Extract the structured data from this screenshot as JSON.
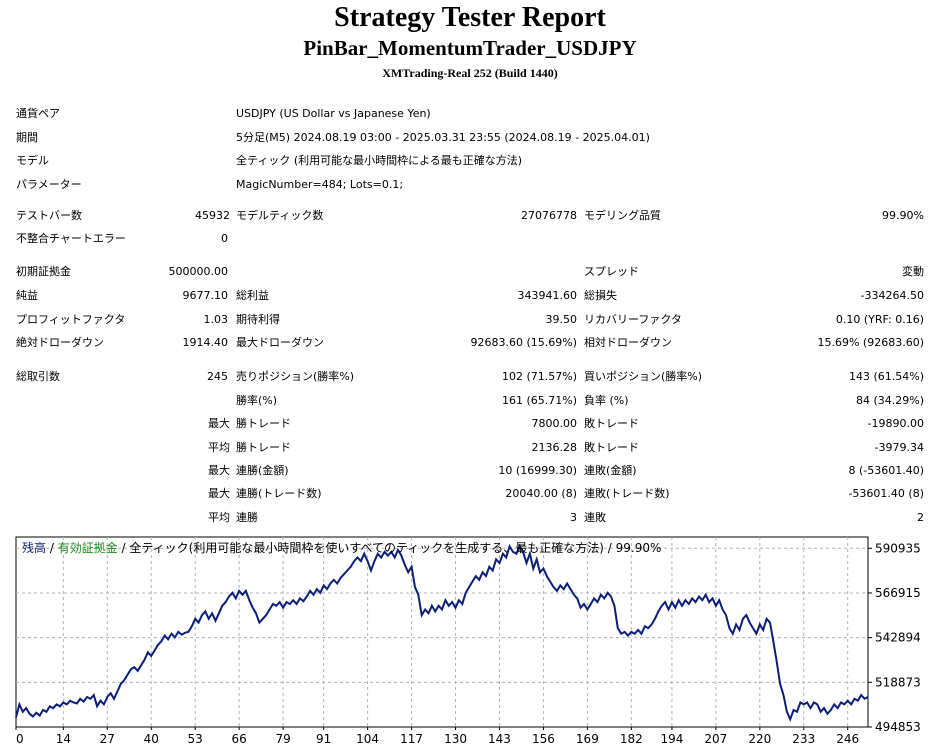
{
  "header": {
    "title": "Strategy Tester Report",
    "ea_name": "PinBar_MomentumTrader_USDJPY",
    "server": "XMTrading-Real 252 (Build 1440)"
  },
  "settings": [
    {
      "label": "通貨ペア",
      "value": "USDJPY (US Dollar vs Japanese Yen)"
    },
    {
      "label": "期間",
      "value": "5分足(M5) 2024.08.19 03:00 - 2025.03.31 23:55 (2024.08.19 - 2025.04.01)"
    },
    {
      "label": "モデル",
      "value": "全ティック (利用可能な最小時間枠による最も正確な方法)"
    },
    {
      "label": "パラメーター",
      "value": "MagicNumber=484; Lots=0.1;"
    }
  ],
  "stats": {
    "bars_label": "テストバー数",
    "bars": "45932",
    "ticks_label": "モデルティック数",
    "ticks": "27076778",
    "quality_label": "モデリング品質",
    "quality": "99.90%",
    "errors_label": "不整合チャートエラー",
    "errors": "0",
    "deposit_label": "初期証拠金",
    "deposit": "500000.00",
    "spread_label": "スプレッド",
    "spread": "変動",
    "net_label": "純益",
    "net": "9677.10",
    "gross_profit_label": "総利益",
    "gross_profit": "343941.60",
    "gross_loss_label": "総損失",
    "gross_loss": "-334264.50",
    "pf_label": "プロフィットファクタ",
    "pf": "1.03",
    "expected_label": "期待利得",
    "expected": "39.50",
    "recovery_label": "リカバリーファクタ",
    "recovery": "0.10 (YRF: 0.16)",
    "abs_dd_label": "絶対ドローダウン",
    "abs_dd": "1914.40",
    "max_dd_label": "最大ドローダウン",
    "max_dd": "92683.60 (15.69%)",
    "rel_dd_label": "相対ドローダウン",
    "rel_dd": "15.69% (92683.60)",
    "trades_label": "総取引数",
    "trades": "245",
    "short_label": "売りポジション(勝率%)",
    "short": "102 (71.57%)",
    "long_label": "買いポジション(勝率%)",
    "long": "143 (61.54%)",
    "win_rate_label": "勝率(%)",
    "win_rate": "161 (65.71%)",
    "loss_rate_label": "負率 (%)",
    "loss_rate": "84 (34.29%)",
    "largest_label": "最大",
    "largest_win_label": "勝トレード",
    "largest_win": "7800.00",
    "largest_loss_label": "敗トレード",
    "largest_loss": "-19890.00",
    "average_label": "平均",
    "avg_win_label": "勝トレード",
    "avg_win": "2136.28",
    "avg_loss_label": "敗トレード",
    "avg_loss": "-3979.34",
    "max1_label": "最大",
    "consec_win_amt_label": "連勝(金額)",
    "consec_win_amt": "10 (16999.30)",
    "consec_loss_amt_label": "連敗(金額)",
    "consec_loss_amt": "8 (-53601.40)",
    "max2_label": "最大",
    "consec_win_cnt_label": "連勝(トレード数)",
    "consec_win_cnt": "20040.00 (8)",
    "consec_loss_cnt_label": "連敗(トレード数)",
    "consec_loss_cnt": "-53601.40 (8)",
    "avg2_label": "平均",
    "avg_consec_win_label": "連勝",
    "avg_consec_win": "3",
    "avg_consec_loss_label": "連敗",
    "avg_consec_loss": "2"
  },
  "colors": {
    "balance": "#0b1e7a",
    "equity": "#1e8c1e",
    "grid": "#b4b4b4"
  },
  "chart_data": {
    "type": "line",
    "legend": {
      "balance": "残高",
      "sep1": " / ",
      "equity": "有効証拠金",
      "sep2": " / ",
      "rest": "全ティック(利用可能な最小時間枠を使いすべてのティックを生成する、最も正確な方法) / 99.90%"
    },
    "y_ticks": [
      590935,
      566915,
      542894,
      518873,
      494853
    ],
    "x_ticks": [
      0,
      14,
      27,
      40,
      53,
      66,
      79,
      91,
      104,
      117,
      130,
      143,
      156,
      169,
      182,
      194,
      207,
      220,
      233,
      246
    ],
    "ylim": [
      494853,
      597000
    ],
    "xlim": [
      0,
      252
    ],
    "series": [
      {
        "values": [
          [
            0,
            500000
          ],
          [
            1,
            507000
          ],
          [
            2,
            503000
          ],
          [
            3,
            505000
          ],
          [
            4,
            502000
          ],
          [
            5,
            500500
          ],
          [
            6,
            502500
          ],
          [
            7,
            501000
          ],
          [
            8,
            504000
          ],
          [
            9,
            503000
          ],
          [
            10,
            506000
          ],
          [
            11,
            505000
          ],
          [
            12,
            507000
          ],
          [
            13,
            506000
          ],
          [
            14,
            508000
          ],
          [
            15,
            507000
          ],
          [
            16,
            509000
          ],
          [
            17,
            508000
          ],
          [
            18,
            507500
          ],
          [
            19,
            510000
          ],
          [
            20,
            508500
          ],
          [
            21,
            511000
          ],
          [
            22,
            510000
          ],
          [
            23,
            512000
          ],
          [
            24,
            506000
          ],
          [
            25,
            509000
          ],
          [
            26,
            507000
          ],
          [
            27,
            511000
          ],
          [
            28,
            513000
          ],
          [
            29,
            510000
          ],
          [
            30,
            514000
          ],
          [
            31,
            518000
          ],
          [
            32,
            520000
          ],
          [
            33,
            523000
          ],
          [
            34,
            526000
          ],
          [
            35,
            527000
          ],
          [
            36,
            525000
          ],
          [
            37,
            528000
          ],
          [
            38,
            531000
          ],
          [
            39,
            535000
          ],
          [
            40,
            533000
          ],
          [
            41,
            536000
          ],
          [
            42,
            539000
          ],
          [
            43,
            541000
          ],
          [
            44,
            544000
          ],
          [
            45,
            542000
          ],
          [
            46,
            545000
          ],
          [
            47,
            543000
          ],
          [
            48,
            546000
          ],
          [
            49,
            544500
          ],
          [
            50,
            545500
          ],
          [
            51,
            546000
          ],
          [
            52,
            549000
          ],
          [
            53,
            553000
          ],
          [
            54,
            551000
          ],
          [
            55,
            555000
          ],
          [
            56,
            557000
          ],
          [
            57,
            553000
          ],
          [
            58,
            556000
          ],
          [
            59,
            552000
          ],
          [
            60,
            556000
          ],
          [
            61,
            560000
          ],
          [
            62,
            562000
          ],
          [
            63,
            565000
          ],
          [
            64,
            567000
          ],
          [
            65,
            564000
          ],
          [
            66,
            568000
          ],
          [
            67,
            566000
          ],
          [
            68,
            568000
          ],
          [
            69,
            563000
          ],
          [
            70,
            559000
          ],
          [
            71,
            556000
          ],
          [
            72,
            551000
          ],
          [
            73,
            553000
          ],
          [
            74,
            555000
          ],
          [
            75,
            558000
          ],
          [
            76,
            561000
          ],
          [
            77,
            560000
          ],
          [
            78,
            562000
          ],
          [
            79,
            559000
          ],
          [
            80,
            562000
          ],
          [
            81,
            561000
          ],
          [
            82,
            563000
          ],
          [
            83,
            561000
          ],
          [
            84,
            564000
          ],
          [
            85,
            562500
          ],
          [
            86,
            565000
          ],
          [
            87,
            568000
          ],
          [
            88,
            566000
          ],
          [
            89,
            569000
          ],
          [
            90,
            567000
          ],
          [
            91,
            571000
          ],
          [
            92,
            569000
          ],
          [
            93,
            572000
          ],
          [
            94,
            574000
          ],
          [
            95,
            572000
          ],
          [
            96,
            575000
          ],
          [
            97,
            577000
          ],
          [
            98,
            579000
          ],
          [
            99,
            581000
          ],
          [
            100,
            584000
          ],
          [
            101,
            586000
          ],
          [
            102,
            584000
          ],
          [
            103,
            588000
          ],
          [
            104,
            584000
          ],
          [
            105,
            579000
          ],
          [
            106,
            584000
          ],
          [
            107,
            588000
          ],
          [
            108,
            586000
          ],
          [
            109,
            589000
          ],
          [
            110,
            587000
          ],
          [
            111,
            589000
          ],
          [
            112,
            586000
          ],
          [
            113,
            590000
          ],
          [
            114,
            587000
          ],
          [
            115,
            582000
          ],
          [
            116,
            578000
          ],
          [
            117,
            581000
          ],
          [
            118,
            570000
          ],
          [
            119,
            566000
          ],
          [
            120,
            555000
          ],
          [
            121,
            558000
          ],
          [
            122,
            556000
          ],
          [
            123,
            560000
          ],
          [
            124,
            557000
          ],
          [
            125,
            560000
          ],
          [
            126,
            558000
          ],
          [
            127,
            563000
          ],
          [
            128,
            560000
          ],
          [
            129,
            562000
          ],
          [
            130,
            559000
          ],
          [
            131,
            563000
          ],
          [
            132,
            561000
          ],
          [
            133,
            567000
          ],
          [
            134,
            570000
          ],
          [
            135,
            573000
          ],
          [
            136,
            576000
          ],
          [
            137,
            574000
          ],
          [
            138,
            578000
          ],
          [
            139,
            576000
          ],
          [
            140,
            581000
          ],
          [
            141,
            579000
          ],
          [
            142,
            585000
          ],
          [
            143,
            583000
          ],
          [
            144,
            588000
          ],
          [
            145,
            586000
          ],
          [
            146,
            592000
          ],
          [
            147,
            589000
          ],
          [
            148,
            588000
          ],
          [
            149,
            592000
          ],
          [
            150,
            589000
          ],
          [
            151,
            583000
          ],
          [
            152,
            588000
          ],
          [
            153,
            580000
          ],
          [
            154,
            585000
          ],
          [
            155,
            578000
          ],
          [
            156,
            580000
          ],
          [
            157,
            576000
          ],
          [
            158,
            573000
          ],
          [
            159,
            570000
          ],
          [
            160,
            568000
          ],
          [
            161,
            571000
          ],
          [
            162,
            569000
          ],
          [
            163,
            572000
          ],
          [
            164,
            569000
          ],
          [
            165,
            566000
          ],
          [
            166,
            564000
          ],
          [
            167,
            559000
          ],
          [
            168,
            561000
          ],
          [
            169,
            558000
          ],
          [
            170,
            561000
          ],
          [
            171,
            564000
          ],
          [
            172,
            562000
          ],
          [
            173,
            566000
          ],
          [
            174,
            564000
          ],
          [
            175,
            567000
          ],
          [
            176,
            565000
          ],
          [
            177,
            560000
          ],
          [
            178,
            548000
          ],
          [
            179,
            545000
          ],
          [
            180,
            546000
          ],
          [
            181,
            544000
          ],
          [
            182,
            546000
          ],
          [
            183,
            545000
          ],
          [
            184,
            547000
          ],
          [
            185,
            545000
          ],
          [
            186,
            549000
          ],
          [
            187,
            548000
          ],
          [
            188,
            550000
          ],
          [
            189,
            553000
          ],
          [
            190,
            557000
          ],
          [
            191,
            560000
          ],
          [
            192,
            562000
          ],
          [
            193,
            558000
          ],
          [
            194,
            562000
          ],
          [
            195,
            559000
          ],
          [
            196,
            563000
          ],
          [
            197,
            560000
          ],
          [
            198,
            563000
          ],
          [
            199,
            561000
          ],
          [
            200,
            564000
          ],
          [
            201,
            562000
          ],
          [
            202,
            565000
          ],
          [
            203,
            563000
          ],
          [
            204,
            566000
          ],
          [
            205,
            562000
          ],
          [
            206,
            564000
          ],
          [
            207,
            560000
          ],
          [
            208,
            563000
          ],
          [
            209,
            558000
          ],
          [
            210,
            555000
          ],
          [
            211,
            548000
          ],
          [
            212,
            545000
          ],
          [
            213,
            550000
          ],
          [
            214,
            547000
          ],
          [
            215,
            553000
          ],
          [
            216,
            555000
          ],
          [
            217,
            551000
          ],
          [
            218,
            548000
          ],
          [
            219,
            545000
          ],
          [
            220,
            550000
          ],
          [
            221,
            547000
          ],
          [
            222,
            553000
          ],
          [
            223,
            551000
          ],
          [
            224,
            541000
          ],
          [
            225,
            530000
          ],
          [
            226,
            518000
          ],
          [
            227,
            512000
          ],
          [
            228,
            503000
          ],
          [
            229,
            499000
          ],
          [
            230,
            504000
          ],
          [
            231,
            503000
          ],
          [
            232,
            508000
          ],
          [
            233,
            507000
          ],
          [
            234,
            508000
          ],
          [
            235,
            505000
          ],
          [
            236,
            508000
          ],
          [
            237,
            507000
          ],
          [
            238,
            503000
          ],
          [
            239,
            505000
          ],
          [
            240,
            502000
          ],
          [
            241,
            504000
          ],
          [
            242,
            507000
          ],
          [
            243,
            505000
          ],
          [
            244,
            508000
          ],
          [
            245,
            507000
          ],
          [
            246,
            509000
          ],
          [
            247,
            507000
          ],
          [
            248,
            510000
          ],
          [
            249,
            509000
          ],
          [
            250,
            512000
          ],
          [
            251,
            510000
          ],
          [
            252,
            511000
          ]
        ]
      }
    ]
  }
}
